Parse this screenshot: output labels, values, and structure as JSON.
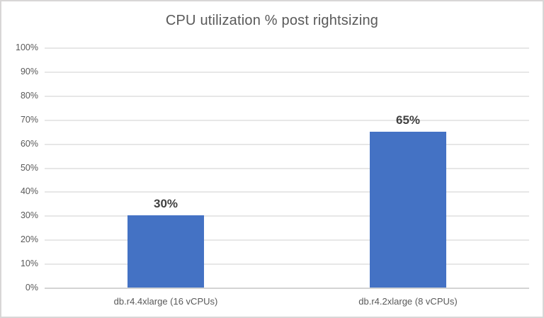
{
  "chart_data": {
    "type": "bar",
    "title": "CPU utilization % post rightsizing",
    "categories": [
      "db.r4.4xlarge (16 vCPUs)",
      "db.r4.2xlarge (8 vCPUs)"
    ],
    "values": [
      30,
      65
    ],
    "data_labels": [
      "30%",
      "65%"
    ],
    "xlabel": "",
    "ylabel": "",
    "ylim": [
      0,
      100
    ],
    "ytick_values": [
      0,
      10,
      20,
      30,
      40,
      50,
      60,
      70,
      80,
      90,
      100
    ],
    "ytick_labels": [
      "0%",
      "10%",
      "20%",
      "30%",
      "40%",
      "50%",
      "60%",
      "70%",
      "80%",
      "90%",
      "100%"
    ],
    "grid": true,
    "legend_position": "none",
    "bar_color": "#4472C4",
    "title_color": "#595959",
    "axis_text_color": "#595959",
    "data_label_color": "#404040"
  }
}
